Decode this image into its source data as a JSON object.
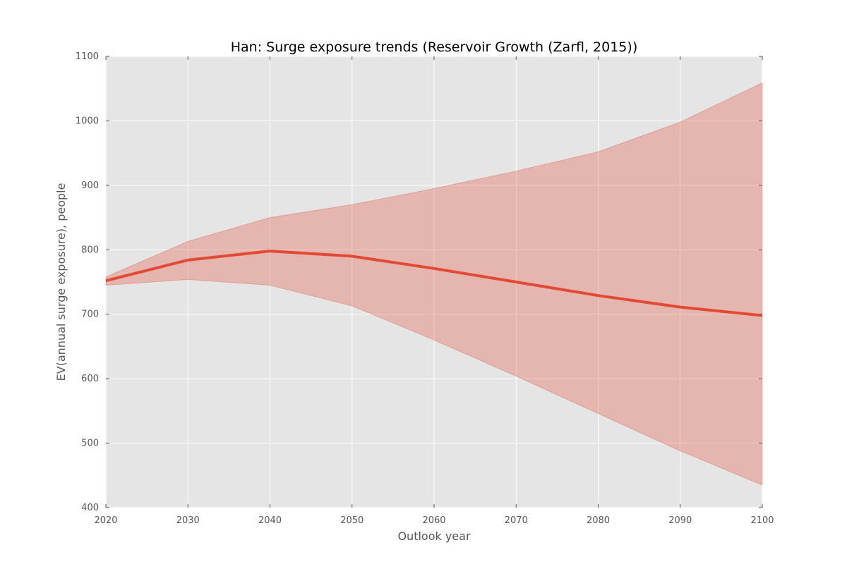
{
  "chart_data": {
    "type": "line",
    "title": "Han: Surge exposure trends (Reservoir Growth (Zarfl, 2015))",
    "xlabel": "Outlook year",
    "ylabel": "EV(annual surge exposure), people",
    "xlim": [
      2020,
      2100
    ],
    "ylim": [
      400,
      1100
    ],
    "x_ticks": [
      2020,
      2030,
      2040,
      2050,
      2060,
      2070,
      2080,
      2090,
      2100
    ],
    "y_ticks": [
      400,
      500,
      600,
      700,
      800,
      900,
      1000,
      1100
    ],
    "grid": true,
    "x": [
      2020,
      2030,
      2040,
      2050,
      2060,
      2070,
      2080,
      2090,
      2100
    ],
    "series": [
      {
        "values": [
          752,
          784,
          798,
          790,
          771,
          750,
          729,
          711,
          698
        ],
        "color": "#e24a33"
      }
    ],
    "band": {
      "upper": [
        758,
        813,
        850,
        870,
        895,
        922,
        952,
        998,
        1059
      ],
      "lower": [
        745,
        754,
        745,
        713,
        660,
        604,
        546,
        488,
        435
      ],
      "color": "#e24a33",
      "opacity": 0.3
    },
    "colors": {
      "plot_background": "#e5e5e5",
      "grid": "#ffffff",
      "line": "#e24a33"
    }
  }
}
